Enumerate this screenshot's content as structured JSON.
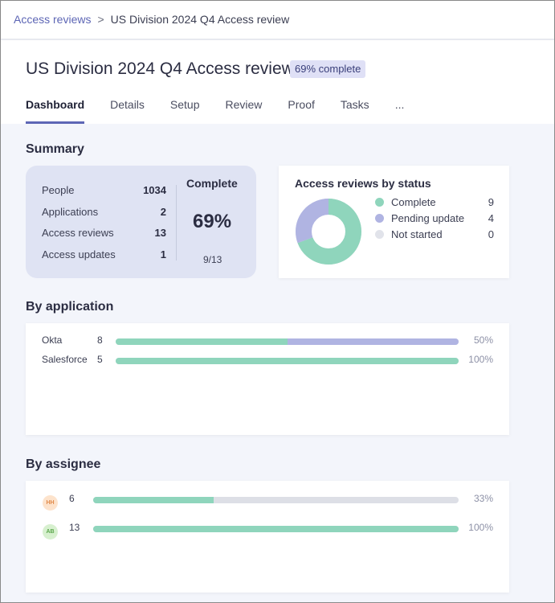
{
  "breadcrumb": {
    "parent": "Access reviews",
    "separator": ">",
    "current": "US Division 2024 Q4 Access review"
  },
  "header": {
    "title": "US Division 2024 Q4 Access review",
    "badge": "69% complete",
    "tabs": [
      "Dashboard",
      "Details",
      "Setup",
      "Review",
      "Proof",
      "Tasks"
    ],
    "more": "...",
    "active_tab": "Dashboard"
  },
  "summary": {
    "heading": "Summary",
    "stats": [
      {
        "label": "People",
        "value": "1034"
      },
      {
        "label": "Applications",
        "value": "2"
      },
      {
        "label": "Access reviews",
        "value": "13"
      },
      {
        "label": "Access updates",
        "value": "1"
      }
    ],
    "complete_label": "Complete",
    "complete_pct": "69%",
    "complete_fraction": "9/13"
  },
  "status_chart": {
    "title": "Access reviews by status",
    "items": [
      {
        "label": "Complete",
        "value": "9",
        "count": 9,
        "color": "#8fd5bc"
      },
      {
        "label": "Pending update",
        "value": "4",
        "count": 4,
        "color": "#b0b4e2"
      },
      {
        "label": "Not started",
        "value": "0",
        "count": 0,
        "color": "#e1e3ea"
      }
    ]
  },
  "by_application": {
    "heading": "By application",
    "rows": [
      {
        "name": "Okta",
        "count": "8",
        "pct_label": "50%",
        "complete_fraction": 0.5,
        "pending_fraction": 0.5
      },
      {
        "name": "Salesforce",
        "count": "5",
        "pct_label": "100%",
        "complete_fraction": 1.0,
        "pending_fraction": 0.0
      }
    ]
  },
  "by_assignee": {
    "heading": "By assignee",
    "rows": [
      {
        "initials": "HH",
        "count": "6",
        "pct_label": "33%",
        "complete_fraction": 0.33,
        "avatar_bg": "#fde3cc",
        "avatar_fg": "#e0894a"
      },
      {
        "initials": "AB",
        "count": "13",
        "pct_label": "100%",
        "complete_fraction": 1.0,
        "avatar_bg": "#d7f0cf",
        "avatar_fg": "#5aa64a"
      }
    ]
  },
  "colors": {
    "complete": "#8fd5bc",
    "pending": "#b0b4e2",
    "track": "#dddfe6",
    "accent": "#5d66b5"
  }
}
